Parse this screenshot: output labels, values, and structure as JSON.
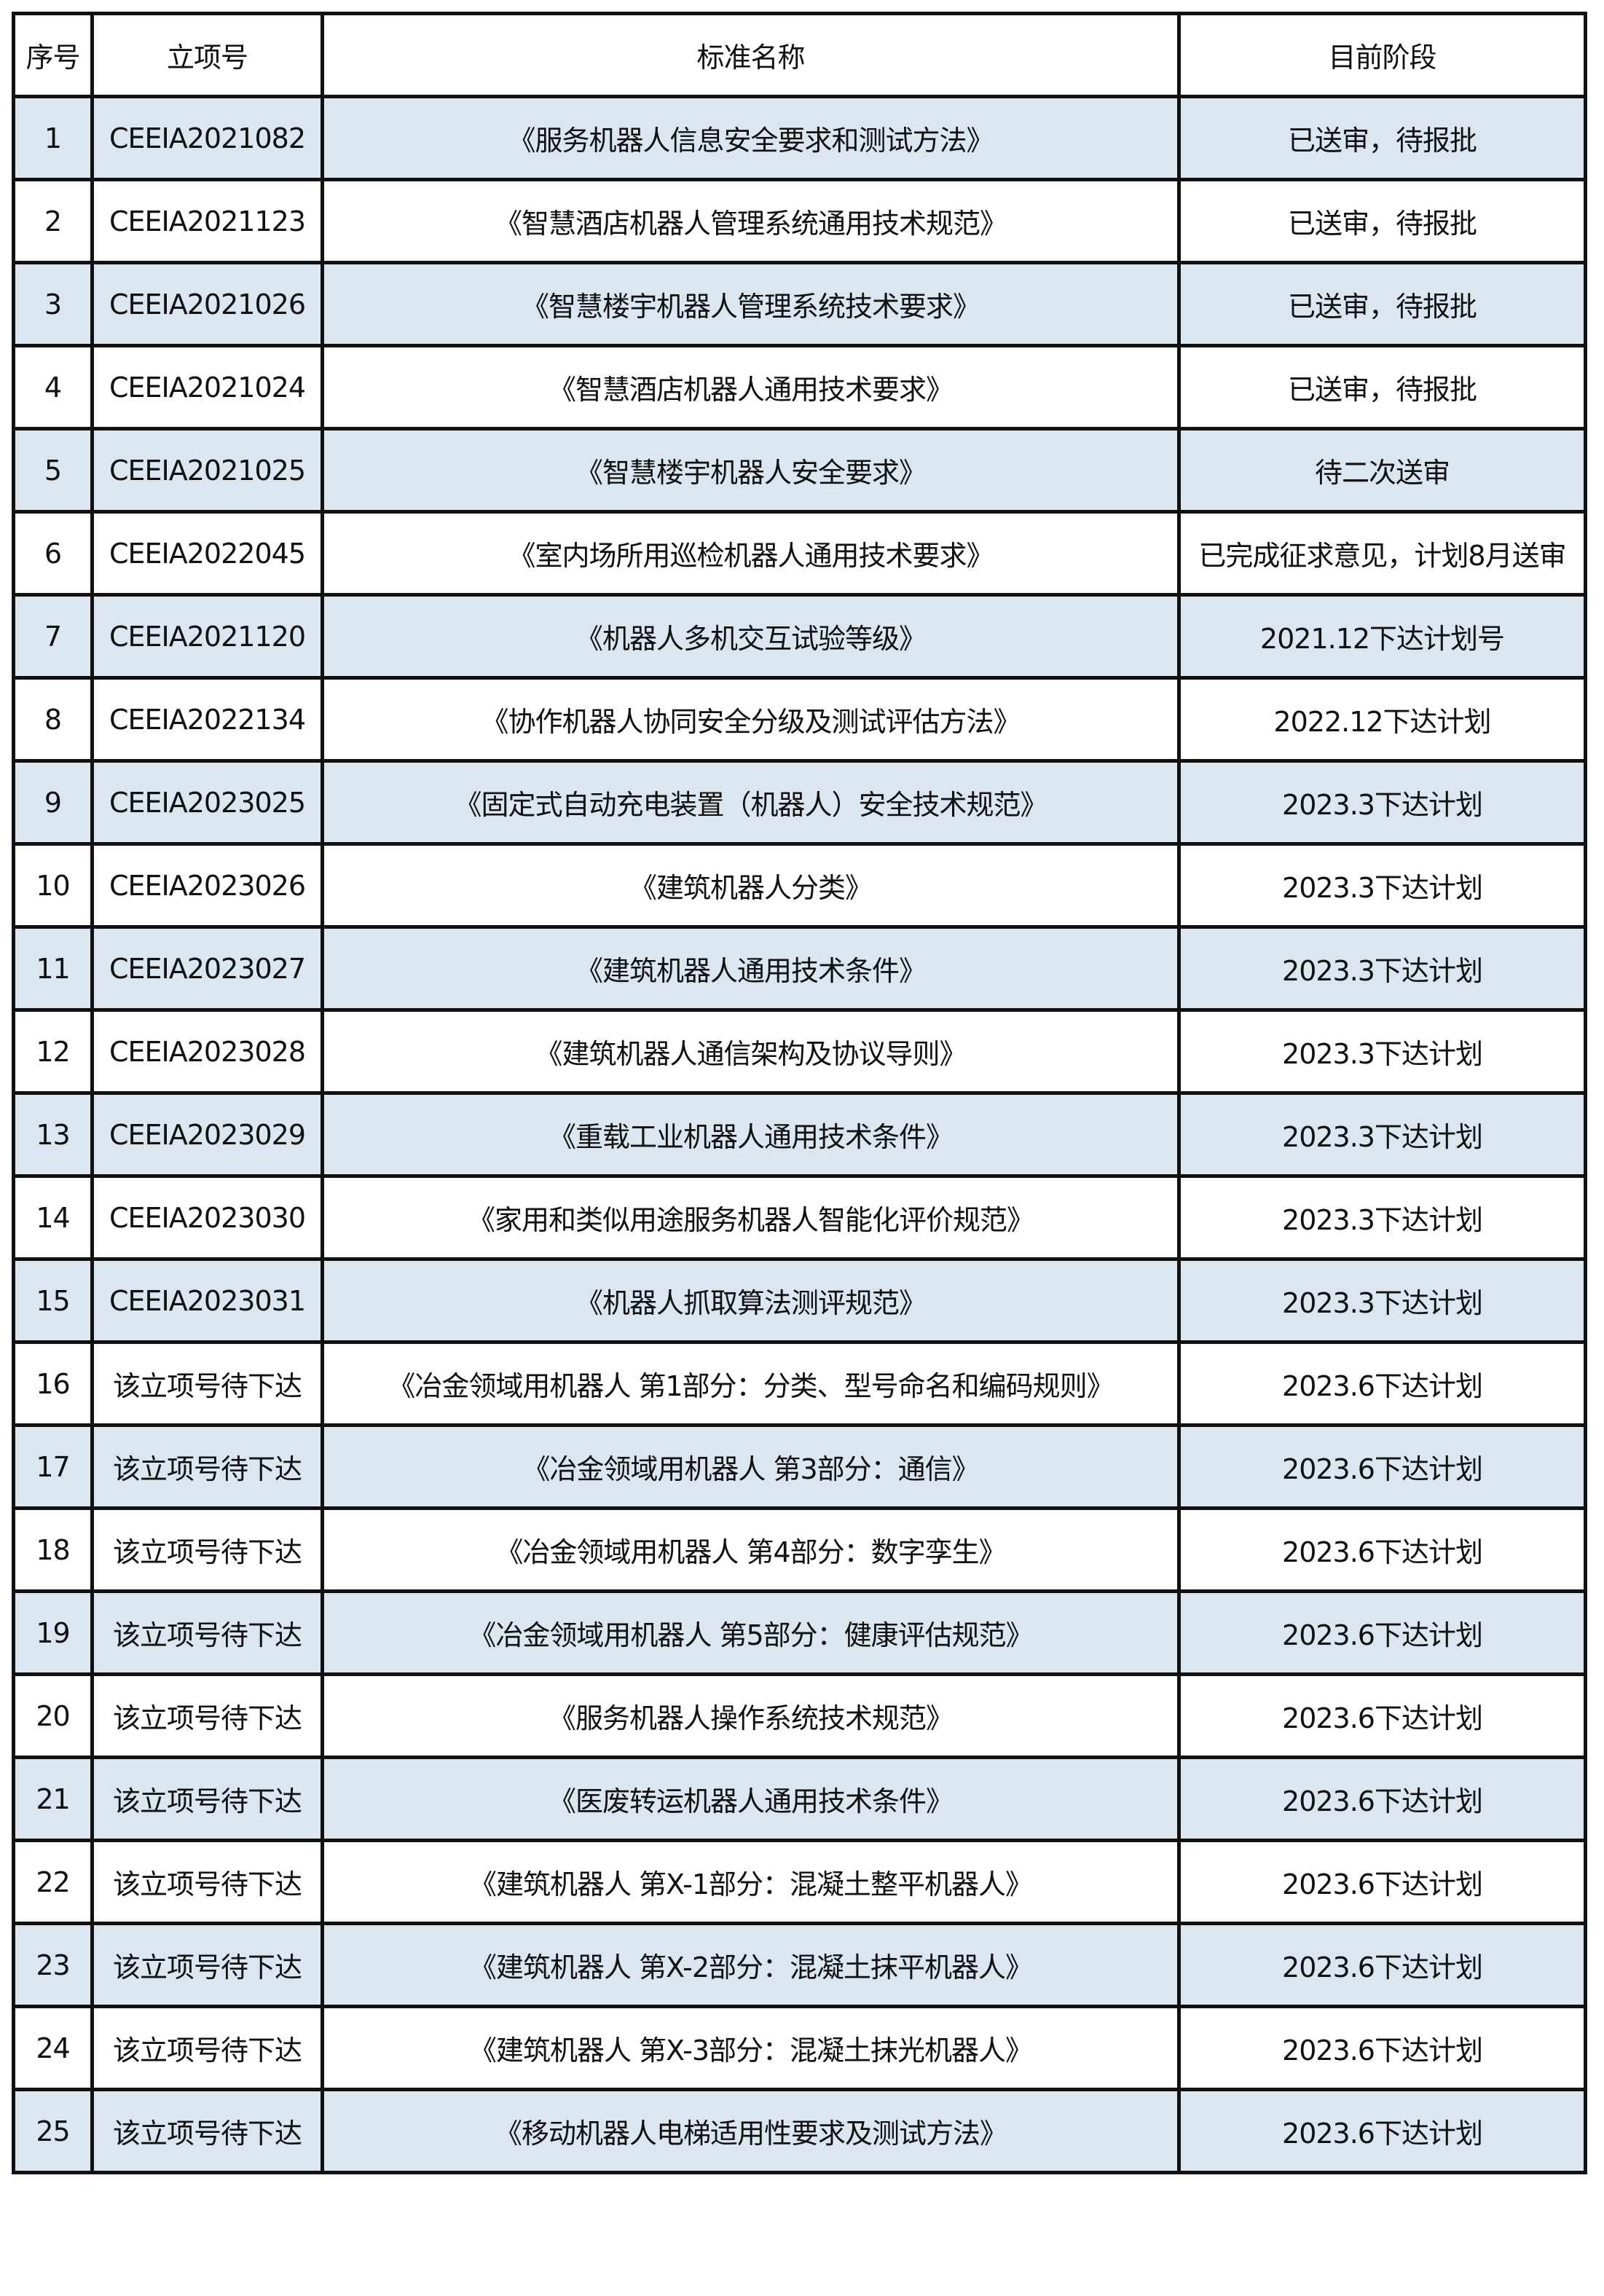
{
  "colors": {
    "row_alt_bg": "#dce6f1",
    "border": "#111111"
  },
  "table": {
    "headers": [
      "序号",
      "立项号",
      "标准名称",
      "目前阶段"
    ],
    "rows": [
      [
        "1",
        "CEEIA2021082",
        "《服务机器人信息安全要求和测试方法》",
        "已送审，待报批"
      ],
      [
        "2",
        "CEEIA2021123",
        "《智慧酒店机器人管理系统通用技术规范》",
        "已送审，待报批"
      ],
      [
        "3",
        "CEEIA2021026",
        "《智慧楼宇机器人管理系统技术要求》",
        "已送审，待报批"
      ],
      [
        "4",
        "CEEIA2021024",
        "《智慧酒店机器人通用技术要求》",
        "已送审，待报批"
      ],
      [
        "5",
        "CEEIA2021025",
        "《智慧楼宇机器人安全要求》",
        "待二次送审"
      ],
      [
        "6",
        "CEEIA2022045",
        "《室内场所用巡检机器人通用技术要求》",
        "已完成征求意见，计划8月送审"
      ],
      [
        "7",
        "CEEIA2021120",
        "《机器人多机交互试验等级》",
        "2021.12下达计划号"
      ],
      [
        "8",
        "CEEIA2022134",
        "《协作机器人协同安全分级及测试评估方法》",
        "2022.12下达计划"
      ],
      [
        "9",
        "CEEIA2023025",
        "《固定式自动充电装置（机器人）安全技术规范》",
        "2023.3下达计划"
      ],
      [
        "10",
        "CEEIA2023026",
        "《建筑机器人分类》",
        "2023.3下达计划"
      ],
      [
        "11",
        "CEEIA2023027",
        "《建筑机器人通用技术条件》",
        "2023.3下达计划"
      ],
      [
        "12",
        "CEEIA2023028",
        "《建筑机器人通信架构及协议导则》",
        "2023.3下达计划"
      ],
      [
        "13",
        "CEEIA2023029",
        "《重载工业机器人通用技术条件》",
        "2023.3下达计划"
      ],
      [
        "14",
        "CEEIA2023030",
        "《家用和类似用途服务机器人智能化评价规范》",
        "2023.3下达计划"
      ],
      [
        "15",
        "CEEIA2023031",
        "《机器人抓取算法测评规范》",
        "2023.3下达计划"
      ],
      [
        "16",
        "该立项号待下达",
        "《冶金领域用机器人  第1部分：分类、型号命名和编码规则》",
        "2023.6下达计划"
      ],
      [
        "17",
        "该立项号待下达",
        "《冶金领域用机器人  第3部分：通信》",
        "2023.6下达计划"
      ],
      [
        "18",
        "该立项号待下达",
        "《冶金领域用机器人  第4部分：数字孪生》",
        "2023.6下达计划"
      ],
      [
        "19",
        "该立项号待下达",
        "《冶金领域用机器人 第5部分：健康评估规范》",
        "2023.6下达计划"
      ],
      [
        "20",
        "该立项号待下达",
        "《服务机器人操作系统技术规范》",
        "2023.6下达计划"
      ],
      [
        "21",
        "该立项号待下达",
        "《医废转运机器人通用技术条件》",
        "2023.6下达计划"
      ],
      [
        "22",
        "该立项号待下达",
        "《建筑机器人 第X-1部分：混凝土整平机器人》",
        "2023.6下达计划"
      ],
      [
        "23",
        "该立项号待下达",
        "《建筑机器人  第X-2部分：混凝土抹平机器人》",
        "2023.6下达计划"
      ],
      [
        "24",
        "该立项号待下达",
        "《建筑机器人 第X-3部分：混凝土抹光机器人》",
        "2023.6下达计划"
      ],
      [
        "25",
        "该立项号待下达",
        "《移动机器人电梯适用性要求及测试方法》",
        "2023.6下达计划"
      ]
    ]
  }
}
